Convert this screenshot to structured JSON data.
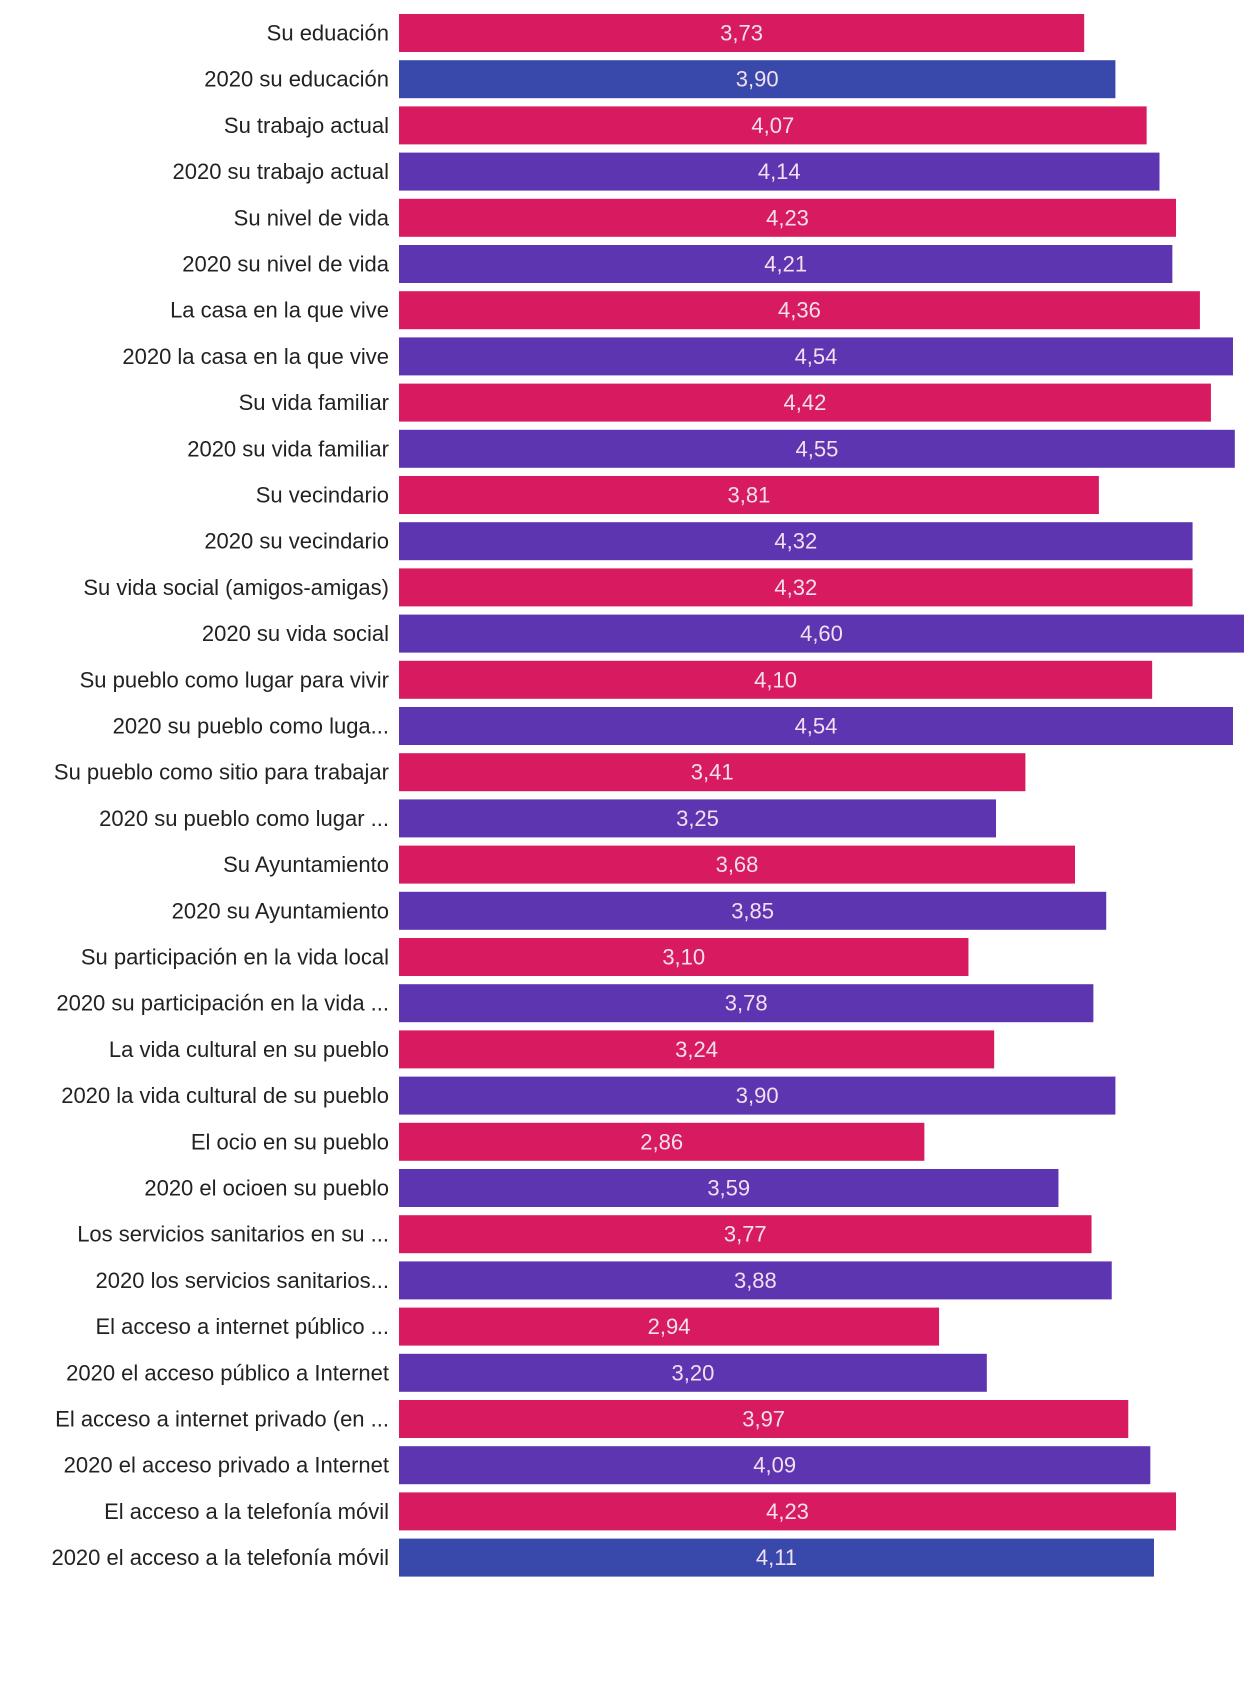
{
  "chart_data": {
    "type": "bar",
    "orientation": "horizontal",
    "title": "",
    "xlabel": "",
    "ylabel": "",
    "xlim": [
      0,
      4.6
    ],
    "grid": false,
    "legend": "none",
    "colors": {
      "current": "#d81b60",
      "year_2020": "#5e35b1",
      "year_2020_alt": "#3949ab",
      "value_text": "#f2dff0",
      "label_text": "#222222"
    },
    "bars": [
      {
        "label": "Su eduación",
        "value": 3.73,
        "display": "3,73",
        "color": "#d81b60"
      },
      {
        "label": "2020 su educación",
        "value": 3.9,
        "display": "3,90",
        "color": "#3949ab"
      },
      {
        "label": "Su trabajo actual",
        "value": 4.07,
        "display": "4,07",
        "color": "#d81b60"
      },
      {
        "label": "2020 su trabajo actual",
        "value": 4.14,
        "display": "4,14",
        "color": "#5e35b1"
      },
      {
        "label": "Su nivel de vida",
        "value": 4.23,
        "display": "4,23",
        "color": "#d81b60"
      },
      {
        "label": "2020 su nivel de vida",
        "value": 4.21,
        "display": "4,21",
        "color": "#5e35b1"
      },
      {
        "label": "La casa en la que vive",
        "value": 4.36,
        "display": "4,36",
        "color": "#d81b60"
      },
      {
        "label": "2020 la casa en la que vive",
        "value": 4.54,
        "display": "4,54",
        "color": "#5e35b1"
      },
      {
        "label": "Su vida familiar",
        "value": 4.42,
        "display": "4,42",
        "color": "#d81b60"
      },
      {
        "label": "2020 su vida familiar",
        "value": 4.55,
        "display": "4,55",
        "color": "#5e35b1"
      },
      {
        "label": "Su vecindario",
        "value": 3.81,
        "display": "3,81",
        "color": "#d81b60"
      },
      {
        "label": "2020 su vecindario",
        "value": 4.32,
        "display": "4,32",
        "color": "#5e35b1"
      },
      {
        "label": "Su vida social (amigos-amigas)",
        "value": 4.32,
        "display": "4,32",
        "color": "#d81b60"
      },
      {
        "label": "2020 su vida social",
        "value": 4.6,
        "display": "4,60",
        "color": "#5e35b1"
      },
      {
        "label": "Su pueblo como lugar para vivir",
        "value": 4.1,
        "display": "4,10",
        "color": "#d81b60"
      },
      {
        "label": "2020 su pueblo como luga...",
        "value": 4.54,
        "display": "4,54",
        "color": "#5e35b1"
      },
      {
        "label": "Su pueblo como sitio para trabajar",
        "value": 3.41,
        "display": "3,41",
        "color": "#d81b60"
      },
      {
        "label": "2020 su pueblo como lugar ...",
        "value": 3.25,
        "display": "3,25",
        "color": "#5e35b1"
      },
      {
        "label": "Su Ayuntamiento",
        "value": 3.68,
        "display": "3,68",
        "color": "#d81b60"
      },
      {
        "label": "2020 su Ayuntamiento",
        "value": 3.85,
        "display": "3,85",
        "color": "#5e35b1"
      },
      {
        "label": "Su participación en la vida local",
        "value": 3.1,
        "display": "3,10",
        "color": "#d81b60"
      },
      {
        "label": "2020 su participación en la vida ...",
        "value": 3.78,
        "display": "3,78",
        "color": "#5e35b1"
      },
      {
        "label": "La vida cultural en su pueblo",
        "value": 3.24,
        "display": "3,24",
        "color": "#d81b60"
      },
      {
        "label": "2020 la vida cultural de su pueblo",
        "value": 3.9,
        "display": "3,90",
        "color": "#5e35b1"
      },
      {
        "label": "El ocio en su pueblo",
        "value": 2.86,
        "display": "2,86",
        "color": "#d81b60"
      },
      {
        "label": "2020 el ocioen su pueblo",
        "value": 3.59,
        "display": "3,59",
        "color": "#5e35b1"
      },
      {
        "label": "Los servicios sanitarios en su ...",
        "value": 3.77,
        "display": "3,77",
        "color": "#d81b60"
      },
      {
        "label": "2020 los servicios sanitarios...",
        "value": 3.88,
        "display": "3,88",
        "color": "#5e35b1"
      },
      {
        "label": "El acceso a internet público ...",
        "value": 2.94,
        "display": "2,94",
        "color": "#d81b60"
      },
      {
        "label": "2020 el acceso público a Internet",
        "value": 3.2,
        "display": "3,20",
        "color": "#5e35b1"
      },
      {
        "label": "El acceso a internet privado (en ...",
        "value": 3.97,
        "display": "3,97",
        "color": "#d81b60"
      },
      {
        "label": "2020 el acceso privado a Internet",
        "value": 4.09,
        "display": "4,09",
        "color": "#5e35b1"
      },
      {
        "label": "El acceso a la telefonía móvil",
        "value": 4.23,
        "display": "4,23",
        "color": "#d81b60"
      },
      {
        "label": "2020 el acceso a la telefonía móvil",
        "value": 4.11,
        "display": "4,11",
        "color": "#3949ab"
      }
    ]
  }
}
